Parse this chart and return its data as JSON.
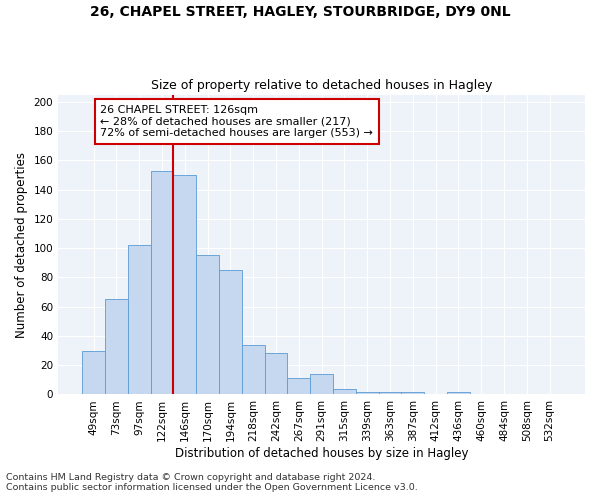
{
  "title": "26, CHAPEL STREET, HAGLEY, STOURBRIDGE, DY9 0NL",
  "subtitle": "Size of property relative to detached houses in Hagley",
  "xlabel": "Distribution of detached houses by size in Hagley",
  "ylabel": "Number of detached properties",
  "footnote1": "Contains HM Land Registry data © Crown copyright and database right 2024.",
  "footnote2": "Contains public sector information licensed under the Open Government Licence v3.0.",
  "annotation_line1": "26 CHAPEL STREET: 126sqm",
  "annotation_line2": "← 28% of detached houses are smaller (217)",
  "annotation_line3": "72% of semi-detached houses are larger (553) →",
  "bar_color": "#c5d8f0",
  "bar_edge_color": "#5b9bd5",
  "vline_color": "#cc0000",
  "background_color": "#eef2f9",
  "grid_color": "#ffffff",
  "categories": [
    "49sqm",
    "73sqm",
    "97sqm",
    "122sqm",
    "146sqm",
    "170sqm",
    "194sqm",
    "218sqm",
    "242sqm",
    "267sqm",
    "291sqm",
    "315sqm",
    "339sqm",
    "363sqm",
    "387sqm",
    "412sqm",
    "436sqm",
    "460sqm",
    "484sqm",
    "508sqm",
    "532sqm"
  ],
  "bar_values": [
    30,
    65,
    102,
    153,
    150,
    95,
    85,
    34,
    28,
    11,
    14,
    4,
    2,
    2,
    2,
    0,
    2,
    0,
    0,
    0,
    0
  ],
  "vline_x": 3.5,
  "ylim": [
    0,
    205
  ],
  "yticks": [
    0,
    20,
    40,
    60,
    80,
    100,
    120,
    140,
    160,
    180,
    200
  ],
  "title_fontsize": 10,
  "subtitle_fontsize": 9,
  "axis_label_fontsize": 8.5,
  "tick_fontsize": 7.5,
  "annotation_fontsize": 8,
  "footnote_fontsize": 6.8
}
